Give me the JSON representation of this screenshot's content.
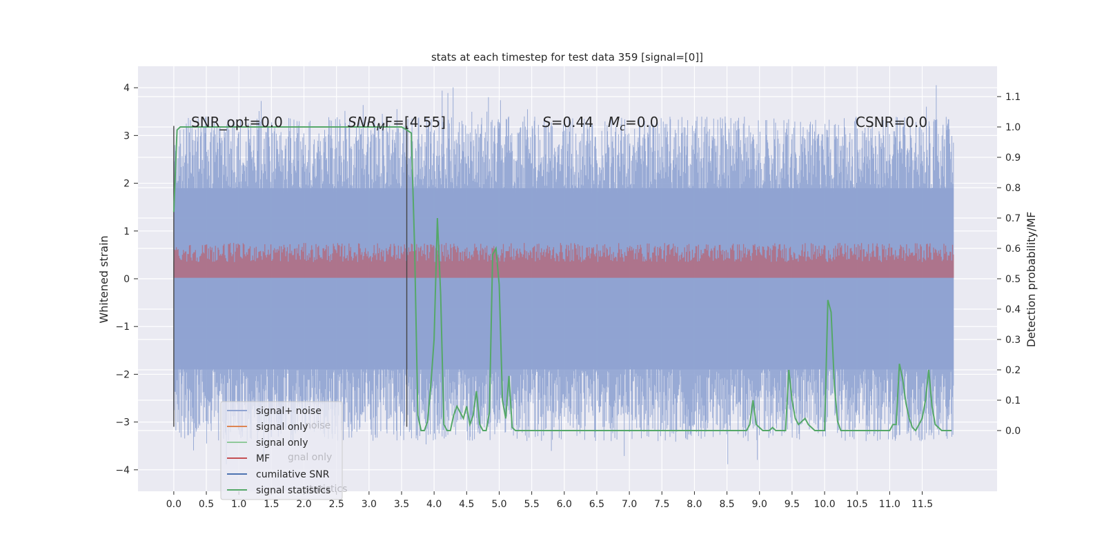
{
  "chart_data": {
    "type": "line",
    "title": "stats at each timestep for test data 359 [signal=[0]]",
    "xlabel": "",
    "ylabel": "Whitened strain",
    "ylabel_right": "Detection probability/MF",
    "xlim": [
      -0.55,
      12.65
    ],
    "ylim": [
      -4.45,
      4.45
    ],
    "ylim_right": [
      -0.2,
      1.2
    ],
    "x_ticks": [
      "0.0",
      "0.5",
      "1.0",
      "1.5",
      "2.0",
      "2.5",
      "3.0",
      "3.5",
      "4.0",
      "4.5",
      "5.0",
      "5.5",
      "6.0",
      "6.5",
      "7.0",
      "7.5",
      "8.0",
      "8.5",
      "9.0",
      "9.5",
      "10.0",
      "10.5",
      "11.0",
      "11.5"
    ],
    "y_ticks": [
      "4",
      "3",
      "2",
      "1",
      "0",
      "−1",
      "−2",
      "−3",
      "−4"
    ],
    "y_ticks_right": [
      "1.1",
      "1.0",
      "0.9",
      "0.8",
      "0.7",
      "0.6",
      "0.5",
      "0.4",
      "0.3",
      "0.2",
      "0.1",
      "0.0"
    ],
    "grid": true,
    "legend_position": "lower-left",
    "legend": [
      {
        "label": "signal+ noise",
        "color": "#8fa3d1"
      },
      {
        "label": "signal only",
        "color": "#dd8452"
      },
      {
        "label": "signal only",
        "color": "#8fc99a"
      },
      {
        "label": "MF",
        "color": "#c44e52"
      },
      {
        "label": "cumilative SNR",
        "color": "#4c72b0"
      },
      {
        "label": "signal statistics",
        "color": "#55a868"
      }
    ],
    "legend_ghost_text": [
      "noise",
      "gnal only",
      "statistics"
    ],
    "annotations": {
      "snr_opt": "SNR_opt=0.0",
      "snr_mf_prefix": "SNR",
      "snr_mf_sub": "M",
      "snr_mf_suffix": "F=[4.55]",
      "s_label": "S",
      "s_value": "=0.44",
      "mc_label": "M",
      "mc_sub": "c",
      "mc_value": "=0.0",
      "csnr": "CSNR=0.0"
    },
    "series": [
      {
        "name": "signal+ noise",
        "axis": "left",
        "x_range": [
          0.0,
          11.98
        ],
        "envelope_upper": 2.4,
        "envelope_lower": -2.4,
        "peak_max": 4.08,
        "peak_min": -4.02,
        "color": "#8fa3d1"
      },
      {
        "name": "MF",
        "axis": "left",
        "x_range": [
          0.0,
          11.98
        ],
        "values_range": [
          0.0,
          0.8
        ],
        "color": "#c44e52"
      },
      {
        "name": "signal statistics",
        "axis": "right",
        "color": "#55a868",
        "x": [
          0.0,
          0.05,
          0.1,
          3.5,
          3.58,
          3.65,
          3.7,
          3.75,
          3.8,
          3.85,
          3.9,
          3.95,
          4.0,
          4.05,
          4.1,
          4.15,
          4.2,
          4.25,
          4.3,
          4.35,
          4.4,
          4.45,
          4.5,
          4.55,
          4.6,
          4.65,
          4.7,
          4.75,
          4.8,
          4.85,
          4.9,
          4.95,
          5.0,
          5.05,
          5.1,
          5.15,
          5.2,
          5.25,
          5.3,
          5.35,
          5.4,
          5.5,
          5.6,
          5.7,
          8.4,
          8.5,
          8.6,
          8.7,
          8.8,
          8.85,
          8.9,
          8.95,
          9.0,
          9.05,
          9.1,
          9.15,
          9.2,
          9.25,
          9.3,
          9.35,
          9.4,
          9.45,
          9.5,
          9.55,
          9.6,
          9.65,
          9.7,
          9.75,
          9.8,
          9.85,
          9.9,
          9.95,
          10.0,
          10.05,
          10.1,
          10.15,
          10.2,
          10.25,
          10.3,
          10.35,
          10.4,
          10.5,
          10.6,
          10.7,
          10.8,
          10.9,
          11.0,
          11.05,
          11.1,
          11.15,
          11.2,
          11.25,
          11.3,
          11.35,
          11.4,
          11.45,
          11.5,
          11.55,
          11.6,
          11.65,
          11.7,
          11.75,
          11.8,
          11.85,
          11.9,
          11.95
        ],
        "values": [
          0.72,
          0.99,
          1.0,
          1.0,
          0.99,
          0.98,
          0.6,
          0.05,
          0.0,
          0.0,
          0.03,
          0.15,
          0.3,
          0.7,
          0.45,
          0.02,
          0.0,
          0.0,
          0.05,
          0.08,
          0.06,
          0.04,
          0.08,
          0.02,
          0.05,
          0.13,
          0.02,
          0.0,
          0.0,
          0.06,
          0.58,
          0.6,
          0.48,
          0.1,
          0.04,
          0.18,
          0.01,
          0.0,
          0.0,
          0.0,
          0.0,
          0.0,
          0.0,
          0.0,
          0.0,
          0.0,
          0.0,
          0.0,
          0.0,
          0.02,
          0.1,
          0.02,
          0.01,
          0.0,
          0.0,
          0.0,
          0.01,
          0.0,
          0.0,
          0.0,
          0.0,
          0.2,
          0.1,
          0.04,
          0.02,
          0.03,
          0.04,
          0.02,
          0.01,
          0.0,
          0.0,
          0.0,
          0.0,
          0.43,
          0.39,
          0.15,
          0.03,
          0.0,
          0.0,
          0.0,
          0.0,
          0.0,
          0.0,
          0.0,
          0.0,
          0.0,
          0.0,
          0.02,
          0.02,
          0.22,
          0.17,
          0.09,
          0.04,
          0.01,
          0.0,
          0.02,
          0.04,
          0.1,
          0.2,
          0.08,
          0.02,
          0.01,
          0.0,
          0.0,
          0.0,
          0.0
        ]
      }
    ],
    "vertical_markers": [
      0.0,
      3.58
    ]
  }
}
